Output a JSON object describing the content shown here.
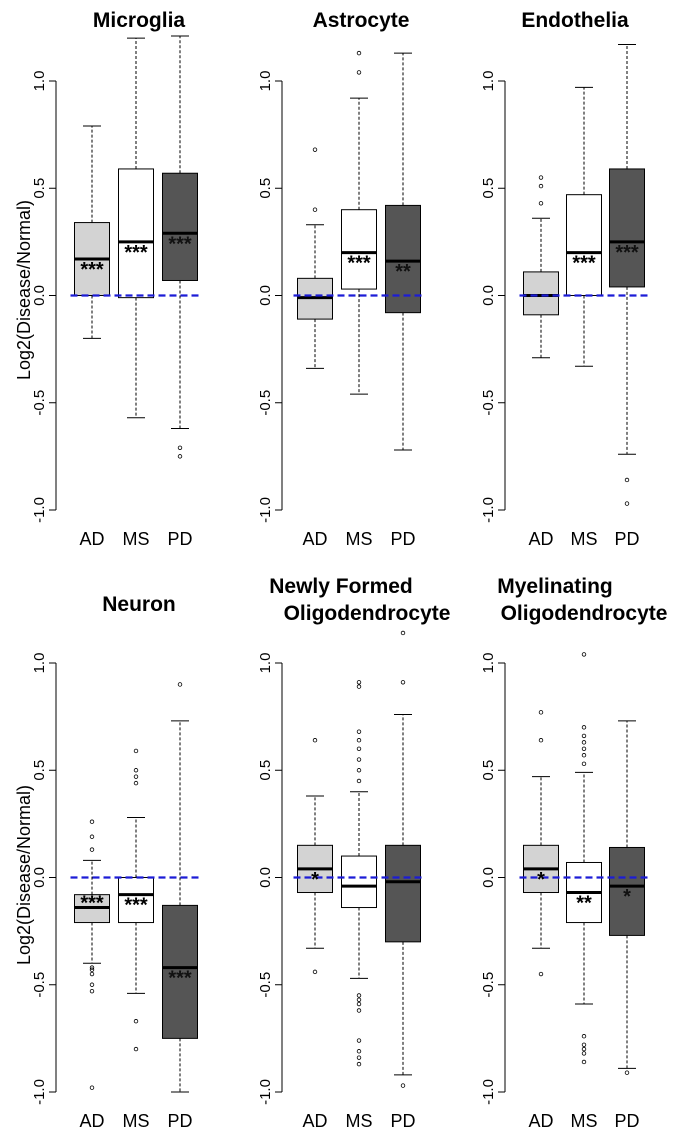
{
  "y_axis_label": "Log2(Disease/Normal)",
  "chart_data": [
    {
      "type": "box",
      "title": [
        "Microglia"
      ],
      "ylabel": "Log2(Disease/Normal)",
      "ylim": [
        -1.0,
        1.0
      ],
      "yticks": [
        "-1.0",
        "-0.5",
        "0.0",
        "0.5",
        "1.0"
      ],
      "categories": [
        "AD",
        "MS",
        "PD"
      ],
      "reference_line": 0.0,
      "boxes": [
        {
          "category": "AD",
          "whisker_low": -0.2,
          "q1": 0.0,
          "median": 0.17,
          "q3": 0.34,
          "whisker_high": 0.79,
          "outliers": [],
          "significance": "***"
        },
        {
          "category": "MS",
          "whisker_low": -0.57,
          "q1": -0.01,
          "median": 0.25,
          "q3": 0.59,
          "whisker_high": 1.2,
          "outliers": [],
          "significance": "***"
        },
        {
          "category": "PD",
          "whisker_low": -0.62,
          "q1": 0.07,
          "median": 0.29,
          "q3": 0.57,
          "whisker_high": 1.21,
          "outliers": [
            -0.71,
            -0.75
          ],
          "significance": "***"
        }
      ]
    },
    {
      "type": "box",
      "title": [
        "Astrocyte"
      ],
      "ylabel": "",
      "ylim": [
        -1.0,
        1.0
      ],
      "yticks": [
        "-1.0",
        "-0.5",
        "0.0",
        "0.5",
        "1.0"
      ],
      "categories": [
        "AD",
        "MS",
        "PD"
      ],
      "reference_line": 0.0,
      "boxes": [
        {
          "category": "AD",
          "whisker_low": -0.34,
          "q1": -0.11,
          "median": -0.01,
          "q3": 0.08,
          "whisker_high": 0.33,
          "outliers": [
            0.4,
            0.68
          ],
          "significance": ""
        },
        {
          "category": "MS",
          "whisker_low": -0.46,
          "q1": 0.03,
          "median": 0.2,
          "q3": 0.4,
          "whisker_high": 0.92,
          "outliers": [
            1.04,
            1.13
          ],
          "significance": "***"
        },
        {
          "category": "PD",
          "whisker_low": -0.72,
          "q1": -0.08,
          "median": 0.16,
          "q3": 0.42,
          "whisker_high": 1.13,
          "outliers": [],
          "significance": "**"
        }
      ]
    },
    {
      "type": "box",
      "title": [
        "Endothelia"
      ],
      "ylabel": "",
      "ylim": [
        -1.0,
        1.0
      ],
      "yticks": [
        "-1.0",
        "-0.5",
        "0.0",
        "0.5",
        "1.0"
      ],
      "categories": [
        "AD",
        "MS",
        "PD"
      ],
      "reference_line": 0.0,
      "boxes": [
        {
          "category": "AD",
          "whisker_low": -0.29,
          "q1": -0.09,
          "median": 0.0,
          "q3": 0.11,
          "whisker_high": 0.36,
          "outliers": [
            0.43,
            0.51,
            0.55
          ],
          "significance": ""
        },
        {
          "category": "MS",
          "whisker_low": -0.33,
          "q1": 0.0,
          "median": 0.2,
          "q3": 0.47,
          "whisker_high": 0.97,
          "outliers": [],
          "significance": "***"
        },
        {
          "category": "PD",
          "whisker_low": -0.74,
          "q1": 0.04,
          "median": 0.25,
          "q3": 0.59,
          "whisker_high": 1.17,
          "outliers": [
            -0.86,
            -0.97
          ],
          "significance": "***"
        }
      ]
    },
    {
      "type": "box",
      "title": [
        "Neuron"
      ],
      "ylabel": "Log2(Disease/Normal)",
      "ylim": [
        -1.0,
        1.0
      ],
      "yticks": [
        "-1.0",
        "-0.5",
        "0.0",
        "0.5",
        "1.0"
      ],
      "categories": [
        "AD",
        "MS",
        "PD"
      ],
      "reference_line": 0.0,
      "boxes": [
        {
          "category": "AD",
          "whisker_low": -0.4,
          "q1": -0.21,
          "median": -0.14,
          "q3": -0.08,
          "whisker_high": 0.08,
          "outliers": [
            0.13,
            0.19,
            0.26,
            -0.42,
            -0.43,
            -0.45,
            -0.5,
            -0.53,
            -0.98
          ],
          "significance": "***"
        },
        {
          "category": "MS",
          "whisker_low": -0.54,
          "q1": -0.21,
          "median": -0.08,
          "q3": 0.0,
          "whisker_high": 0.28,
          "outliers": [
            0.44,
            0.47,
            0.5,
            0.59,
            -0.67,
            -0.8
          ],
          "significance": "***"
        },
        {
          "category": "PD",
          "whisker_low": -1.0,
          "q1": -0.75,
          "median": -0.42,
          "q3": -0.13,
          "whisker_high": 0.73,
          "outliers": [
            0.9
          ],
          "significance": "***"
        }
      ]
    },
    {
      "type": "box",
      "title": [
        "Newly Formed",
        "Oligodendrocyte"
      ],
      "ylabel": "",
      "ylim": [
        -1.0,
        1.0
      ],
      "yticks": [
        "-1.0",
        "-0.5",
        "0.0",
        "0.5",
        "1.0"
      ],
      "categories": [
        "AD",
        "MS",
        "PD"
      ],
      "reference_line": 0.0,
      "boxes": [
        {
          "category": "AD",
          "whisker_low": -0.33,
          "q1": -0.07,
          "median": 0.04,
          "q3": 0.15,
          "whisker_high": 0.38,
          "outliers": [
            0.64,
            -0.44
          ],
          "significance": "*"
        },
        {
          "category": "MS",
          "whisker_low": -0.47,
          "q1": -0.14,
          "median": -0.04,
          "q3": 0.1,
          "whisker_high": 0.4,
          "outliers": [
            0.45,
            0.5,
            0.55,
            0.6,
            0.64,
            0.68,
            0.89,
            0.91,
            -0.55,
            -0.57,
            -0.59,
            -0.62,
            -0.76,
            -0.81,
            -0.84,
            -0.87
          ],
          "significance": ""
        },
        {
          "category": "PD",
          "whisker_low": -0.92,
          "q1": -0.3,
          "median": -0.02,
          "q3": 0.15,
          "whisker_high": 0.76,
          "outliers": [
            0.91,
            1.14,
            -0.97
          ],
          "significance": ""
        }
      ]
    },
    {
      "type": "box",
      "title": [
        "Myelinating",
        "Oligodendrocyte"
      ],
      "ylabel": "",
      "ylim": [
        -1.0,
        1.0
      ],
      "yticks": [
        "-1.0",
        "-0.5",
        "0.0",
        "0.5",
        "1.0"
      ],
      "categories": [
        "AD",
        "MS",
        "PD"
      ],
      "reference_line": 0.0,
      "boxes": [
        {
          "category": "AD",
          "whisker_low": -0.33,
          "q1": -0.07,
          "median": 0.04,
          "q3": 0.15,
          "whisker_high": 0.47,
          "outliers": [
            0.64,
            0.77,
            -0.45
          ],
          "significance": "*"
        },
        {
          "category": "MS",
          "whisker_low": -0.59,
          "q1": -0.21,
          "median": -0.07,
          "q3": 0.07,
          "whisker_high": 0.49,
          "outliers": [
            0.53,
            0.57,
            0.6,
            0.63,
            0.66,
            0.7,
            1.04,
            -0.74,
            -0.78,
            -0.8,
            -0.82,
            -0.86
          ],
          "significance": "**"
        },
        {
          "category": "PD",
          "whisker_low": -0.89,
          "q1": -0.27,
          "median": -0.04,
          "q3": 0.14,
          "whisker_high": 0.73,
          "outliers": [
            -0.91
          ],
          "significance": "*"
        }
      ]
    }
  ],
  "colors": {
    "AD": "#d3d3d3",
    "MS": "#ffffff",
    "PD": "#555555",
    "reference_line": "#1c1cd6",
    "outline": "#000000",
    "star_on_dark": "#111111"
  }
}
